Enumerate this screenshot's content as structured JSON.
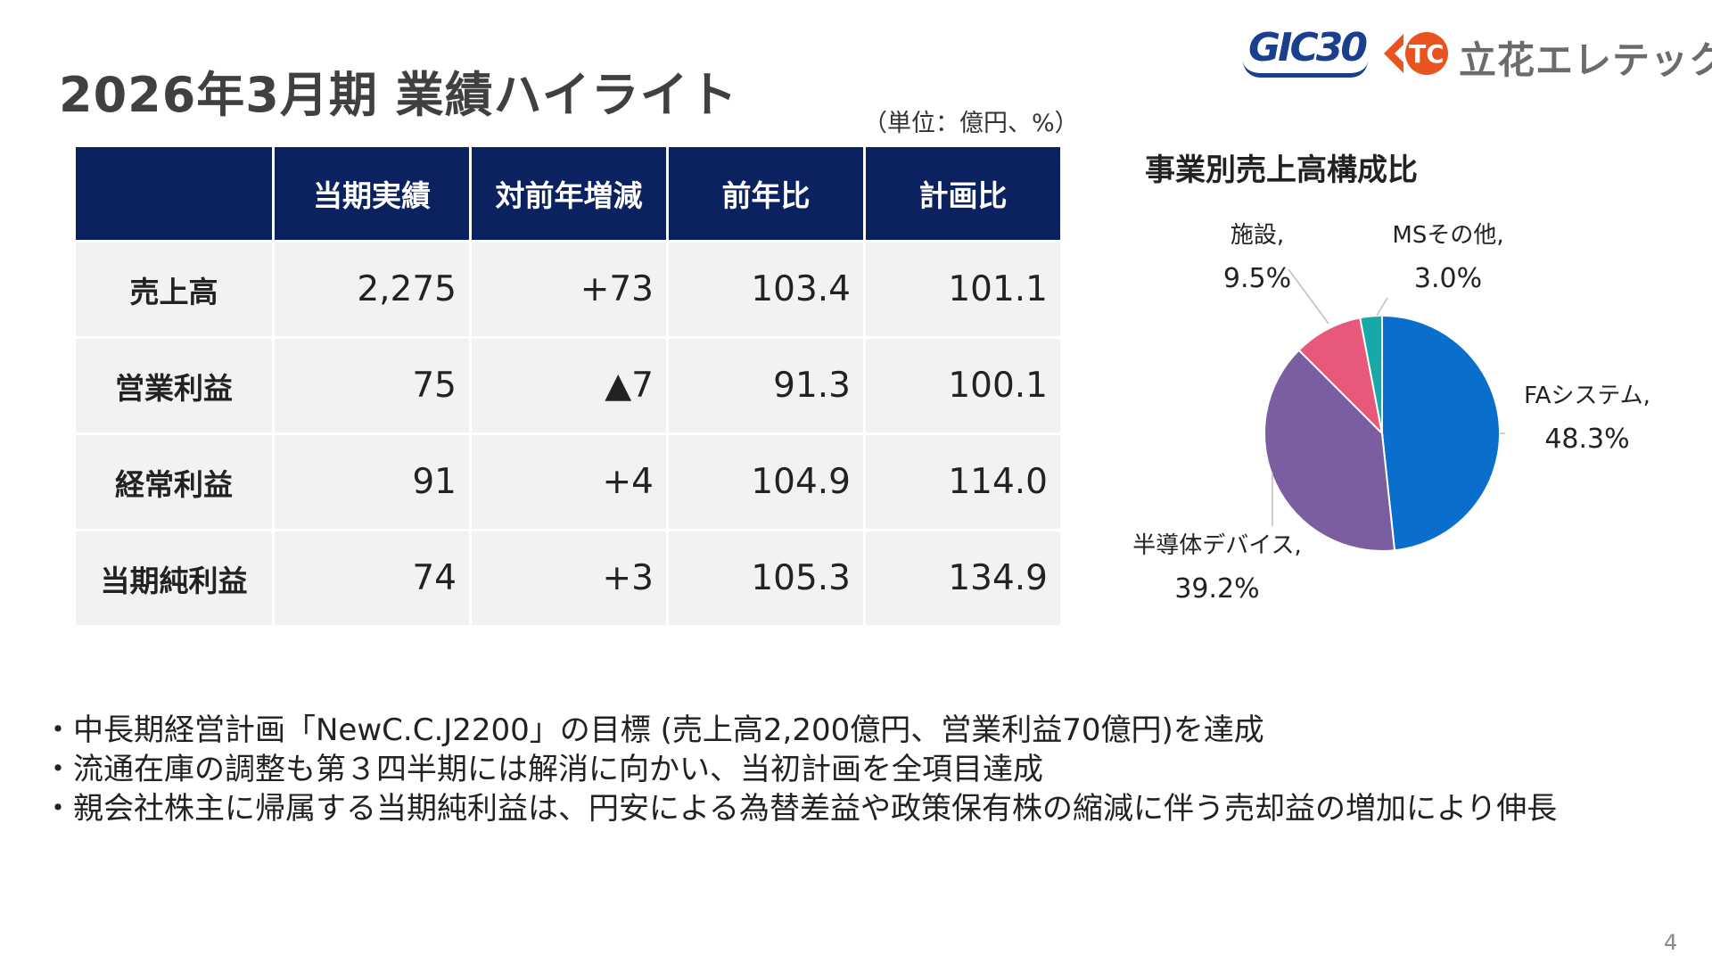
{
  "header": {
    "title": "2026年3月期 業績ハイライト",
    "unit": "（単位：億円、%）",
    "logo_gic": "GIC30",
    "logo_company": "立花エレテック",
    "logo_tc_text": "TC"
  },
  "table": {
    "headers": [
      "",
      "当期実績",
      "対前年増減",
      "前年比",
      "計画比"
    ],
    "rows": [
      {
        "label": "売上高",
        "values": [
          "2,275",
          "+73",
          "103.4",
          "101.1"
        ]
      },
      {
        "label": "営業利益",
        "values": [
          "75",
          "▲7",
          "91.3",
          "100.1"
        ]
      },
      {
        "label": "経常利益",
        "values": [
          "91",
          "+4",
          "104.9",
          "114.0"
        ]
      },
      {
        "label": "当期純利益",
        "values": [
          "74",
          "+3",
          "105.3",
          "134.9"
        ]
      }
    ]
  },
  "chart_data": {
    "type": "pie",
    "title": "事業別売上高構成比",
    "categories": [
      "FAシステム",
      "半導体デバイス",
      "施設",
      "MSその他"
    ],
    "values": [
      48.3,
      39.2,
      9.5,
      3.0
    ],
    "labels": [
      {
        "name": "FAシステム,",
        "value": "48.3%"
      },
      {
        "name": "半導体デバイス,",
        "value": "39.2%"
      },
      {
        "name": "施設,",
        "value": "9.5%"
      },
      {
        "name": "MSその他,",
        "value": "3.0%"
      }
    ],
    "colors": [
      "#0a6fcc",
      "#7b5ea0",
      "#e8587a",
      "#18a8a8"
    ],
    "legend": "none"
  },
  "bullets": [
    "・中長期経営計画「NewC.C.J2200」の目標 (売上高2,200億円、営業利益70億円)を達成",
    "・流通在庫の調整も第３四半期には解消に向かい、当初計画を全項目達成",
    "・親会社株主に帰属する当期純利益は、円安による為替差益や政策保有株の縮減に伴う売却益の増加により伸長"
  ],
  "page_number": "4"
}
